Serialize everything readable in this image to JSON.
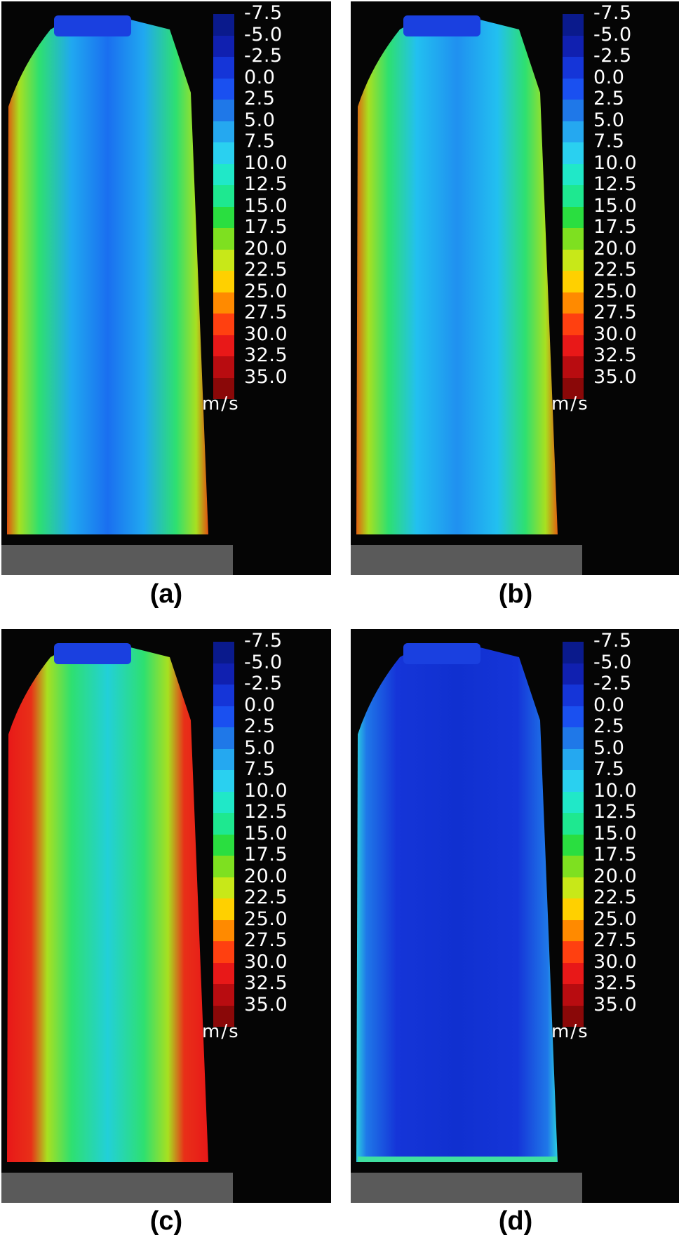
{
  "colorbar": {
    "ticks": [
      "-7.5",
      "-5.0",
      "-2.5",
      "0.0",
      "2.5",
      "5.0",
      "7.5",
      "10.0",
      "12.5",
      "15.0",
      "17.5",
      "20.0",
      "22.5",
      "25.0",
      "27.5",
      "30.0",
      "32.5",
      "35.0"
    ],
    "unit": "m/s",
    "colors": [
      "#0a1a8c",
      "#1020b0",
      "#1535d8",
      "#1a50f0",
      "#1f78e8",
      "#25a8f0",
      "#2ad0f0",
      "#20e8c8",
      "#1ee890",
      "#2ade40",
      "#7ee020",
      "#c8e818",
      "#ffd000",
      "#ff8a00",
      "#ff4010",
      "#e81818",
      "#b80c10",
      "#8a0808"
    ]
  },
  "panels": [
    {
      "id": "a",
      "caption": "(a)",
      "level": "blue-cyan core, green to red edges"
    },
    {
      "id": "b",
      "caption": "(b)",
      "level": "light blue core, green edges"
    },
    {
      "id": "c",
      "caption": "(c)",
      "level": "cyan-green core, red edges"
    },
    {
      "id": "d",
      "caption": "(d)",
      "level": "deep blue throughout"
    }
  ]
}
